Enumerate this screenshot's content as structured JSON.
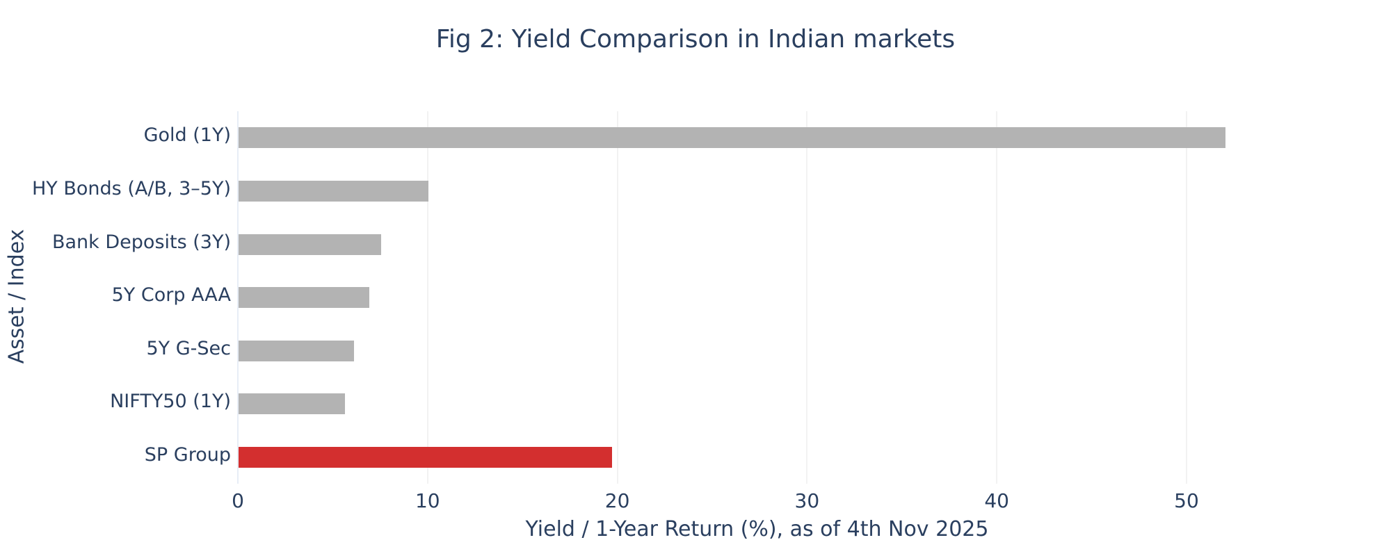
{
  "chart_data": {
    "type": "bar",
    "orientation": "horizontal",
    "title": "Fig 2: Yield Comparison in Indian markets",
    "xlabel": "Yield / 1-Year Return (%), as of 4th Nov 2025",
    "ylabel": "Asset / Index",
    "categories": [
      "Gold (1Y)",
      "HY Bonds (A/B, 3–5Y)",
      "Bank Deposits (3Y)",
      "5Y Corp AAA",
      "5Y G-Sec",
      "NIFTY50 (1Y)",
      "SP Group"
    ],
    "values": [
      52.0,
      10.0,
      7.5,
      6.9,
      6.1,
      5.6,
      19.7
    ],
    "bar_colors": [
      "#b3b3b3",
      "#b3b3b3",
      "#b3b3b3",
      "#b3b3b3",
      "#b3b3b3",
      "#b3b3b3",
      "#d32f2f"
    ],
    "xticks": [
      0,
      10,
      20,
      30,
      40,
      50
    ],
    "xlim": [
      0,
      54.73
    ],
    "grid": "vertical-only",
    "legend": "none",
    "colors": {
      "default_bar": "#b3b3b3",
      "highlight_bar": "#d32f2f",
      "text": "#2a3f5f",
      "gridline": "#f2f2f2",
      "zeroline": "#e7edf6",
      "background": "#ffffff"
    }
  }
}
